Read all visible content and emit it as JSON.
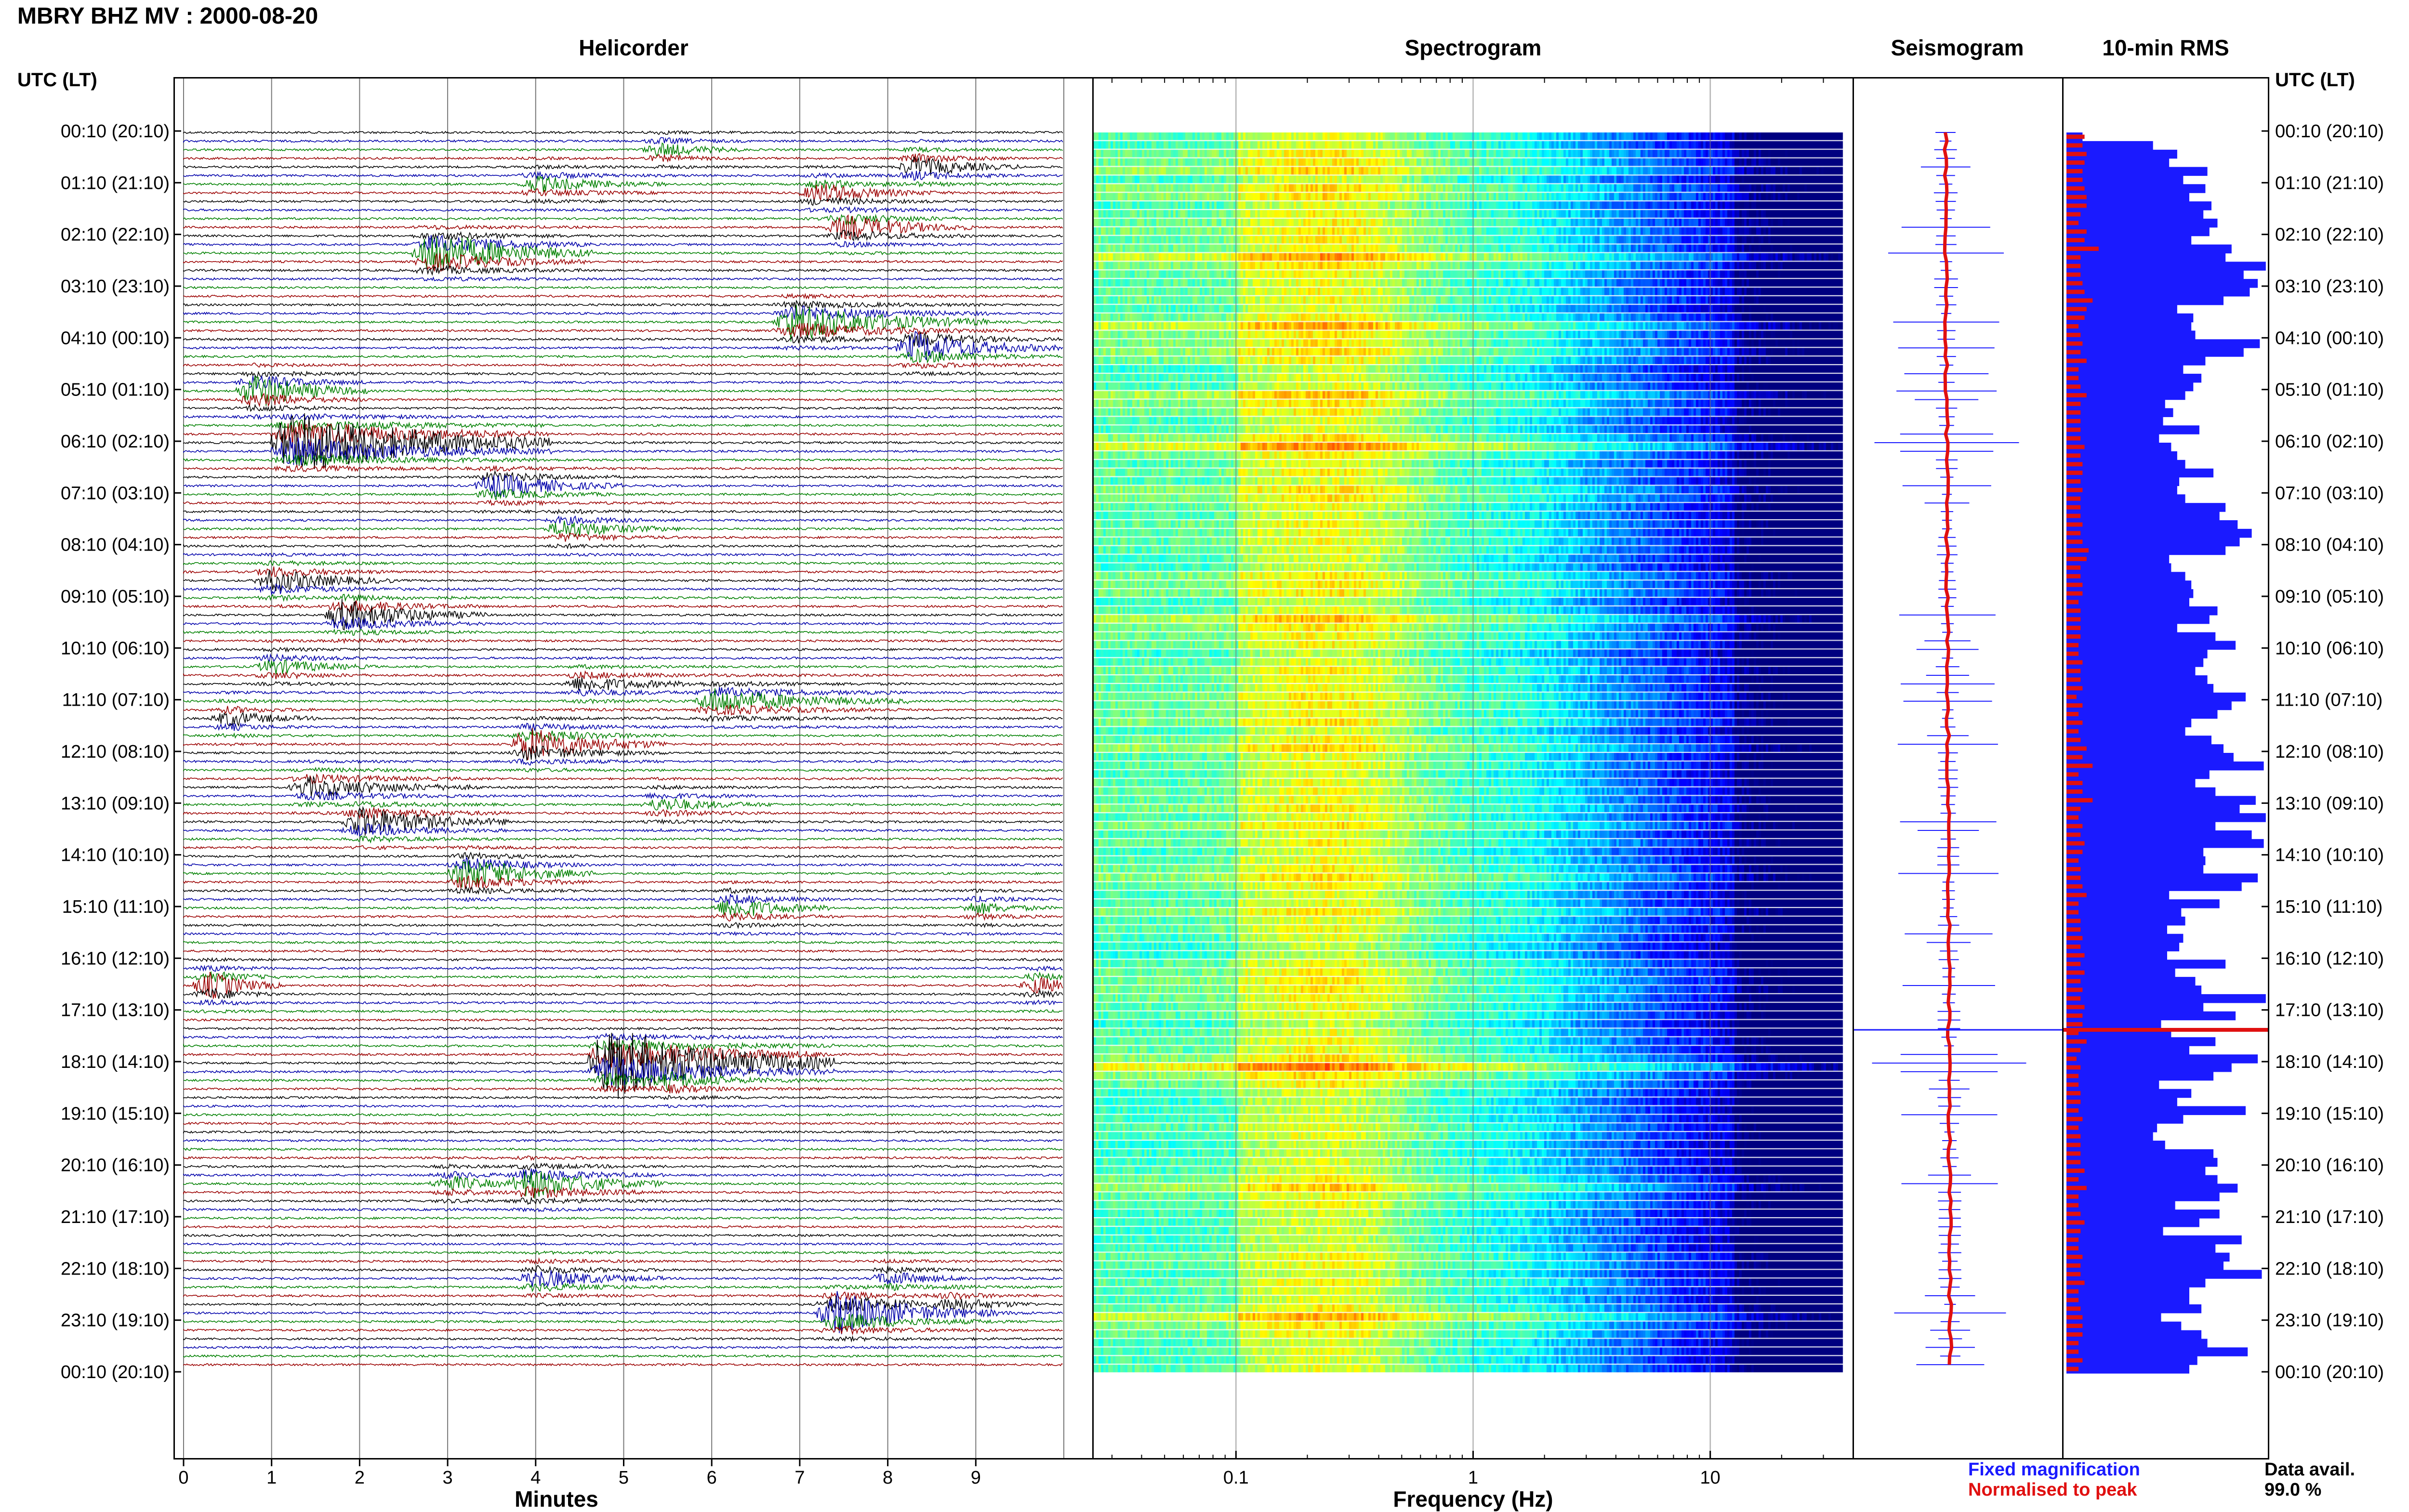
{
  "header": {
    "title": "MBRY BHZ MV : 2000-08-20"
  },
  "panels": {
    "helicorder": "Helicorder",
    "spectrogram": "Spectrogram",
    "seismogram": "Seismogram",
    "rms": "10-min RMS"
  },
  "axis_heading": "UTC (LT)",
  "xlabels": {
    "helicorder": "Minutes",
    "spectrogram": "Frequency (Hz)"
  },
  "legend": {
    "fixed": "Fixed magnification",
    "normalised": "Normalised to peak",
    "avail_label": "Data avail.",
    "avail_value": "99.0 %"
  },
  "colors": {
    "traces": [
      "#000000",
      "#0000aa",
      "#008000",
      "#9b0000"
    ],
    "fixed": "#1a1aff",
    "normalised": "#e01010"
  },
  "chart_data": {
    "type": "helicorder",
    "time_labels": [
      "00:10 (20:10)",
      "01:10 (21:10)",
      "02:10 (22:10)",
      "03:10 (23:10)",
      "04:10 (00:10)",
      "05:10 (01:10)",
      "06:10 (02:10)",
      "07:10 (03:10)",
      "08:10 (04:10)",
      "09:10 (05:10)",
      "10:10 (06:10)",
      "11:10 (07:10)",
      "12:10 (08:10)",
      "13:10 (09:10)",
      "14:10 (10:10)",
      "15:10 (11:10)",
      "16:10 (12:10)",
      "17:10 (13:10)",
      "18:10 (14:10)",
      "19:10 (15:10)",
      "20:10 (16:10)",
      "21:10 (17:10)",
      "22:10 (18:10)",
      "23:10 (19:10)",
      "00:10 (20:10)"
    ],
    "minutes_ticks": [
      "0",
      "1",
      "2",
      "3",
      "4",
      "5",
      "6",
      "7",
      "8",
      "9"
    ],
    "minutes_range": [
      0,
      10
    ],
    "freq_ticks": [
      "0.1",
      "1",
      "10"
    ],
    "freq_range_log10": [
      -1.6,
      1.6
    ],
    "events": [
      {
        "hour": 0.4,
        "minute": 5.4,
        "amp": 0.9,
        "dur": 1.0
      },
      {
        "hour": 0.6,
        "minute": 8.3,
        "amp": 1.3,
        "dur": 1.2
      },
      {
        "hour": 1.0,
        "minute": 4.0,
        "amp": 1.0,
        "dur": 1.5
      },
      {
        "hour": 1.2,
        "minute": 7.2,
        "amp": 1.3,
        "dur": 1.3
      },
      {
        "hour": 1.9,
        "minute": 7.5,
        "amp": 1.6,
        "dur": 1.5
      },
      {
        "hour": 2.4,
        "minute": 2.8,
        "amp": 3.0,
        "dur": 1.8
      },
      {
        "hour": 3.6,
        "minute": 6.9,
        "amp": 2.5,
        "dur": 2.2
      },
      {
        "hour": 4.2,
        "minute": 8.3,
        "amp": 2.0,
        "dur": 1.6
      },
      {
        "hour": 5.0,
        "minute": 0.8,
        "amp": 2.2,
        "dur": 1.3
      },
      {
        "hour": 6.0,
        "minute": 1.2,
        "amp": 4.5,
        "dur": 3.0
      },
      {
        "hour": 6.9,
        "minute": 3.5,
        "amp": 1.6,
        "dur": 1.5
      },
      {
        "hour": 7.7,
        "minute": 4.3,
        "amp": 1.2,
        "dur": 1.3
      },
      {
        "hour": 8.6,
        "minute": 1.0,
        "amp": 1.5,
        "dur": 1.4
      },
      {
        "hour": 9.4,
        "minute": 1.8,
        "amp": 2.0,
        "dur": 1.6
      },
      {
        "hour": 10.3,
        "minute": 1.0,
        "amp": 1.0,
        "dur": 1.2
      },
      {
        "hour": 10.6,
        "minute": 4.5,
        "amp": 1.0,
        "dur": 1.6
      },
      {
        "hour": 11.0,
        "minute": 6.0,
        "amp": 1.6,
        "dur": 2.2
      },
      {
        "hour": 11.3,
        "minute": 0.5,
        "amp": 1.0,
        "dur": 1.0
      },
      {
        "hour": 11.8,
        "minute": 3.9,
        "amp": 2.2,
        "dur": 1.6
      },
      {
        "hour": 12.6,
        "minute": 1.4,
        "amp": 1.3,
        "dur": 2.0
      },
      {
        "hour": 13.0,
        "minute": 5.4,
        "amp": 0.9,
        "dur": 1.3
      },
      {
        "hour": 13.4,
        "minute": 2.0,
        "amp": 2.0,
        "dur": 1.7
      },
      {
        "hour": 14.4,
        "minute": 3.2,
        "amp": 2.2,
        "dur": 1.4
      },
      {
        "hour": 15.0,
        "minute": 6.2,
        "amp": 1.4,
        "dur": 1.2
      },
      {
        "hour": 15.0,
        "minute": 9.0,
        "amp": 0.8,
        "dur": 0.9
      },
      {
        "hour": 16.5,
        "minute": 0.3,
        "amp": 1.8,
        "dur": 0.8
      },
      {
        "hour": 16.5,
        "minute": 9.7,
        "amp": 1.2,
        "dur": 0.6
      },
      {
        "hour": 18.0,
        "minute": 4.8,
        "amp": 5.0,
        "dur": 2.6
      },
      {
        "hour": 18.3,
        "minute": 5.5,
        "amp": 1.2,
        "dur": 1.2
      },
      {
        "hour": 20.4,
        "minute": 3.9,
        "amp": 2.0,
        "dur": 1.6
      },
      {
        "hour": 20.4,
        "minute": 3.0,
        "amp": 1.0,
        "dur": 1.0
      },
      {
        "hour": 22.1,
        "minute": 4.0,
        "amp": 1.2,
        "dur": 1.5
      },
      {
        "hour": 22.1,
        "minute": 8.0,
        "amp": 0.9,
        "dur": 1.0
      },
      {
        "hour": 22.8,
        "minute": 7.4,
        "amp": 2.8,
        "dur": 1.8
      },
      {
        "hour": 22.6,
        "minute": 8.7,
        "amp": 1.0,
        "dur": 1.0
      }
    ],
    "rms_blue": [
      0.08,
      0.43,
      0.55,
      0.51,
      0.7,
      0.58,
      0.69,
      0.61,
      0.72,
      0.68,
      0.75,
      0.71,
      0.62,
      0.82,
      0.79,
      0.99,
      0.88,
      0.95,
      0.91,
      0.78,
      0.55,
      0.63,
      0.62,
      0.64,
      0.96,
      0.88,
      0.69,
      0.58,
      0.67,
      0.63,
      0.59,
      0.49,
      0.53,
      0.48,
      0.66,
      0.46,
      0.52,
      0.55,
      0.59,
      0.73,
      0.56,
      0.55,
      0.59,
      0.79,
      0.76,
      0.85,
      0.92,
      0.86,
      0.79,
      0.51,
      0.52,
      0.59,
      0.62,
      0.63,
      0.61,
      0.75,
      0.71,
      0.55,
      0.74,
      0.84,
      0.7,
      0.68,
      0.64,
      0.7,
      0.73,
      0.89,
      0.82,
      0.75,
      0.62,
      0.59,
      0.72,
      0.78,
      0.83,
      0.98,
      0.71,
      0.64,
      0.74,
      0.94,
      0.86,
      0.99,
      0.74,
      0.92,
      0.98,
      0.68,
      0.69,
      0.68,
      0.95,
      0.87,
      0.51,
      0.76,
      0.57,
      0.59,
      0.5,
      0.58,
      0.56,
      0.5,
      0.79,
      0.54,
      0.64,
      0.67,
      0.99,
      0.68,
      0.84,
      0.47,
      0.52,
      0.74,
      0.61,
      0.95,
      0.82,
      0.73,
      0.46,
      0.62,
      0.55,
      0.89,
      0.58,
      0.45,
      0.43,
      0.49,
      0.73,
      0.75,
      0.69,
      0.75,
      0.85,
      0.76,
      0.54,
      0.76,
      0.66,
      0.48,
      0.87,
      0.74,
      0.81,
      0.78,
      0.97,
      0.69,
      0.61,
      0.61,
      0.67,
      0.47,
      0.57,
      0.67,
      0.7,
      0.9,
      0.65,
      0.61
    ],
    "rms_red": [
      0.09,
      0.08,
      0.1,
      0.09,
      0.08,
      0.08,
      0.09,
      0.1,
      0.1,
      0.07,
      0.06,
      0.1,
      0.09,
      0.16,
      0.07,
      0.07,
      0.07,
      0.08,
      0.09,
      0.13,
      0.1,
      0.09,
      0.06,
      0.07,
      0.08,
      0.07,
      0.1,
      0.06,
      0.06,
      0.07,
      0.1,
      0.07,
      0.07,
      0.07,
      0.07,
      0.07,
      0.09,
      0.07,
      0.08,
      0.08,
      0.07,
      0.08,
      0.07,
      0.07,
      0.07,
      0.08,
      0.07,
      0.08,
      0.11,
      0.1,
      0.07,
      0.07,
      0.08,
      0.08,
      0.06,
      0.07,
      0.07,
      0.07,
      0.07,
      0.06,
      0.06,
      0.08,
      0.07,
      0.07,
      0.08,
      0.05,
      0.08,
      0.06,
      0.08,
      0.06,
      0.07,
      0.1,
      0.08,
      0.13,
      0.06,
      0.08,
      0.08,
      0.13,
      0.07,
      0.06,
      0.08,
      0.07,
      0.09,
      0.08,
      0.06,
      0.07,
      0.07,
      0.08,
      0.1,
      0.06,
      0.06,
      0.07,
      0.07,
      0.08,
      0.07,
      0.09,
      0.07,
      0.09,
      0.07,
      0.08,
      0.07,
      0.09,
      0.08,
      0.08,
      0.06,
      0.1,
      0.07,
      0.05,
      0.07,
      0.06,
      0.06,
      0.07,
      0.07,
      0.06,
      0.08,
      0.06,
      0.07,
      0.07,
      0.07,
      0.07,
      0.09,
      0.06,
      0.1,
      0.06,
      0.06,
      0.07,
      0.09,
      0.07,
      0.06,
      0.06,
      0.08,
      0.07,
      0.07,
      0.09,
      0.06,
      0.06,
      0.07,
      0.08,
      0.08,
      0.08,
      0.06,
      0.06,
      0.08,
      0.06
    ]
  }
}
